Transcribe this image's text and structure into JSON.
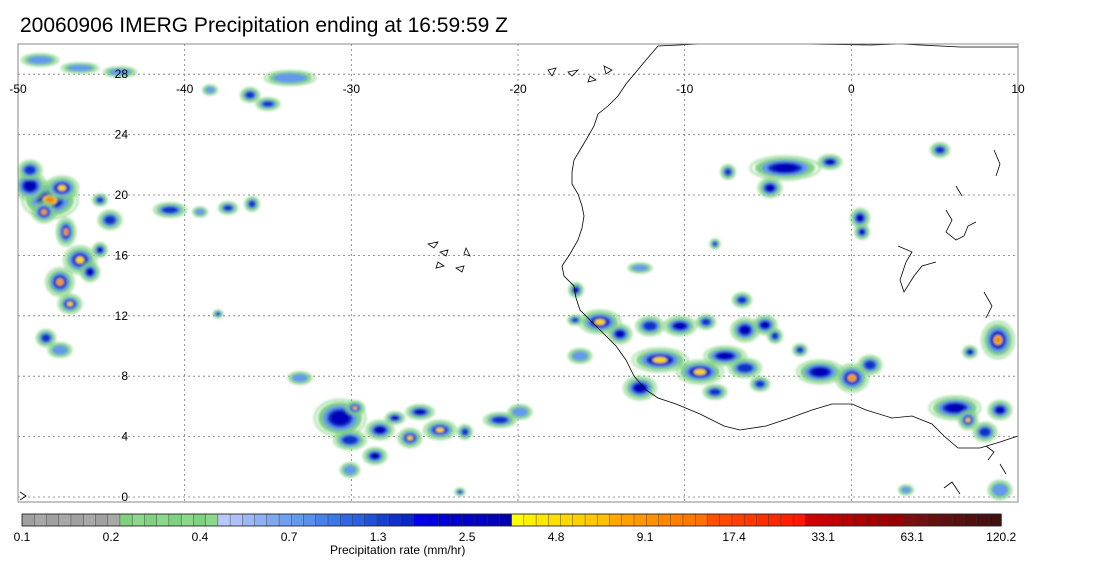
{
  "title": "20060906 IMERG Precipitation ending at 16:59:59 Z",
  "map": {
    "lon_range": [
      -50,
      10
    ],
    "lat_range": [
      -1,
      30
    ],
    "lon_ticks": [
      "-50",
      "-40",
      "-30",
      "-20",
      "-10",
      "0",
      "10"
    ],
    "lat_ticks": [
      "28",
      "24",
      "20",
      "16",
      "12",
      "8",
      "4",
      "0"
    ],
    "gridlines": "dotted",
    "coastline_color": "#000000"
  },
  "colorbar": {
    "label": "Precipitation rate (mm/hr)",
    "tick_labels": [
      "0.1",
      "0.2",
      "0.4",
      "0.7",
      "1.3",
      "2.5",
      "4.8",
      "9.1",
      "17.4",
      "33.1",
      "63.1",
      "120.2"
    ],
    "colors": [
      "#a0a0a0",
      "#a8a8a8",
      "#a0a0a0",
      "#a8a8a8",
      "#a0a0a0",
      "#a8a8a8",
      "#a0a0a0",
      "#a8a8a8",
      "#7fd07f",
      "#8cd88c",
      "#7fd07f",
      "#8cd88c",
      "#7fd07f",
      "#8cd88c",
      "#7fd07f",
      "#8cd88c",
      "#b8c8f8",
      "#aec0f8",
      "#9cb8f4",
      "#90b0f4",
      "#80a8f0",
      "#70a0f0",
      "#6498ec",
      "#5890ec",
      "#4880e8",
      "#3c78e8",
      "#3068e4",
      "#2860e0",
      "#2050d8",
      "#1840d0",
      "#1030c8",
      "#0828c0",
      "#0000e8",
      "#0000e0",
      "#0000d8",
      "#0000d0",
      "#0000c8",
      "#0000c0",
      "#0000b8",
      "#0000b0",
      "#ffff00",
      "#fff000",
      "#ffe800",
      "#ffe000",
      "#ffd800",
      "#ffd000",
      "#ffc800",
      "#ffc000",
      "#ffa800",
      "#ffa000",
      "#ff9800",
      "#ff9000",
      "#ff8800",
      "#ff8000",
      "#ff7800",
      "#ff7000",
      "#ff5000",
      "#ff4800",
      "#ff4000",
      "#ff3800",
      "#ff3000",
      "#ff2800",
      "#ff2000",
      "#ff1800",
      "#d00000",
      "#c80000",
      "#c00000",
      "#b80000",
      "#b00000",
      "#a80000",
      "#a00000",
      "#980000",
      "#781010",
      "#701010",
      "#681010",
      "#601010",
      "#581010",
      "#501010",
      "#481010",
      "#401010"
    ]
  }
}
